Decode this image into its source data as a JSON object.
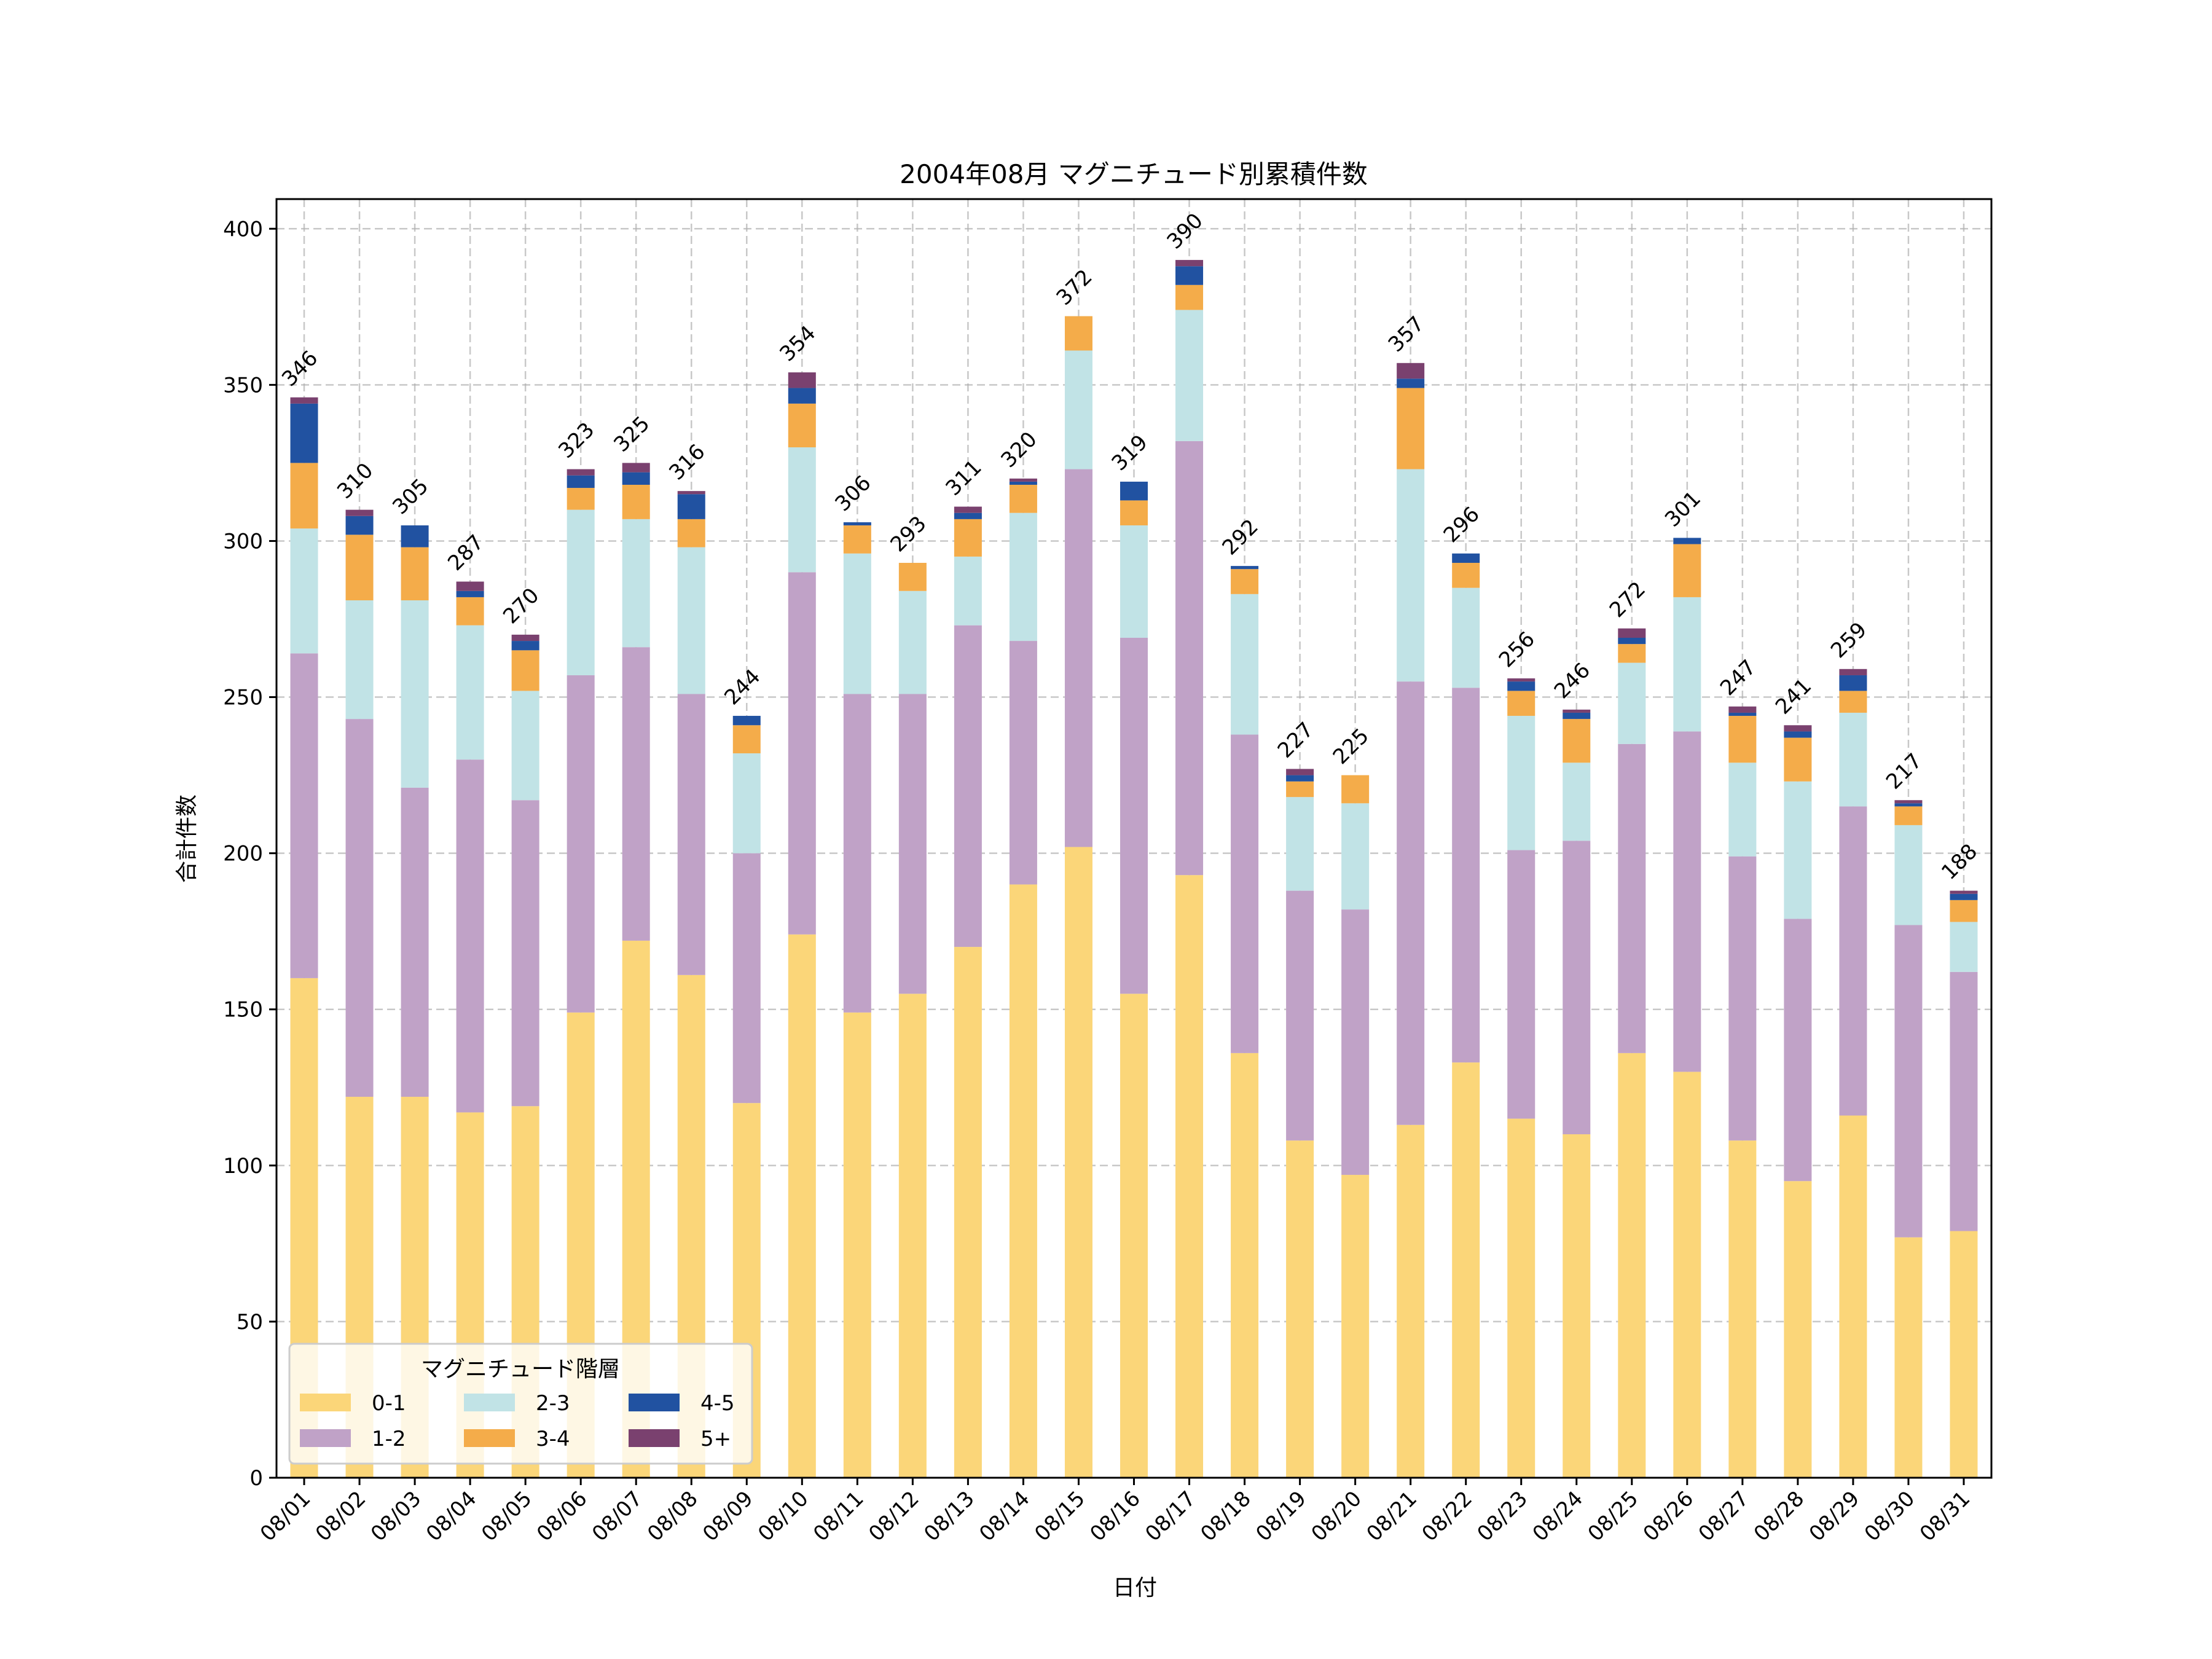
{
  "chart_data": {
    "type": "bar",
    "stacked": true,
    "title": "2004年08月 マグニチュード別累積件数",
    "xlabel": "日付",
    "ylabel": "合計件数",
    "ylim": [
      0,
      409.5
    ],
    "yticks": [
      0,
      50,
      100,
      150,
      200,
      250,
      300,
      350,
      400
    ],
    "grid": true,
    "legend": {
      "title": "マグニチュード階層",
      "placement": "lower-left",
      "columns": 3
    },
    "categories": [
      "08/01",
      "08/02",
      "08/03",
      "08/04",
      "08/05",
      "08/06",
      "08/07",
      "08/08",
      "08/09",
      "08/10",
      "08/11",
      "08/12",
      "08/13",
      "08/14",
      "08/15",
      "08/16",
      "08/17",
      "08/18",
      "08/19",
      "08/20",
      "08/21",
      "08/22",
      "08/23",
      "08/24",
      "08/25",
      "08/26",
      "08/27",
      "08/28",
      "08/29",
      "08/30",
      "08/31"
    ],
    "series": [
      {
        "name": "0-1",
        "color": "#FBD679",
        "values": [
          160,
          122,
          122,
          117,
          119,
          149,
          172,
          161,
          120,
          174,
          149,
          155,
          170,
          190,
          202,
          155,
          193,
          136,
          108,
          97,
          113,
          133,
          115,
          110,
          136,
          130,
          108,
          95,
          116,
          77,
          79
        ]
      },
      {
        "name": "1-2",
        "color": "#C0A2C7",
        "values": [
          104,
          121,
          99,
          113,
          98,
          108,
          94,
          90,
          80,
          116,
          102,
          96,
          103,
          78,
          121,
          114,
          139,
          102,
          80,
          85,
          142,
          120,
          86,
          94,
          99,
          109,
          91,
          84,
          99,
          100,
          83
        ]
      },
      {
        "name": "2-3",
        "color": "#C1E3E6",
        "values": [
          40,
          38,
          60,
          43,
          35,
          53,
          41,
          47,
          32,
          40,
          45,
          33,
          22,
          41,
          38,
          36,
          42,
          45,
          30,
          34,
          68,
          32,
          43,
          25,
          26,
          43,
          30,
          44,
          30,
          32,
          16
        ]
      },
      {
        "name": "3-4",
        "color": "#F4AC4A",
        "values": [
          21,
          21,
          17,
          9,
          13,
          7,
          11,
          9,
          9,
          14,
          9,
          9,
          12,
          9,
          11,
          8,
          8,
          8,
          5,
          9,
          26,
          8,
          8,
          14,
          6,
          17,
          15,
          14,
          7,
          6,
          7
        ]
      },
      {
        "name": "4-5",
        "color": "#2152A1",
        "values": [
          19,
          6,
          7,
          2,
          3,
          4,
          4,
          8,
          3,
          5,
          1,
          0,
          2,
          1,
          0,
          6,
          6,
          1,
          2,
          0,
          3,
          3,
          3,
          2,
          2,
          2,
          1,
          2,
          5,
          1,
          2
        ]
      },
      {
        "name": "5+",
        "color": "#7A416F",
        "values": [
          2,
          2,
          0,
          3,
          2,
          2,
          3,
          1,
          0,
          5,
          0,
          0,
          2,
          1,
          0,
          0,
          2,
          0,
          2,
          0,
          5,
          0,
          1,
          1,
          3,
          0,
          2,
          2,
          2,
          1,
          1
        ]
      }
    ],
    "totals": [
      346,
      310,
      305,
      287,
      270,
      323,
      325,
      316,
      244,
      354,
      306,
      293,
      311,
      320,
      372,
      319,
      390,
      292,
      227,
      225,
      357,
      296,
      256,
      246,
      272,
      301,
      247,
      241,
      259,
      217,
      188
    ]
  }
}
